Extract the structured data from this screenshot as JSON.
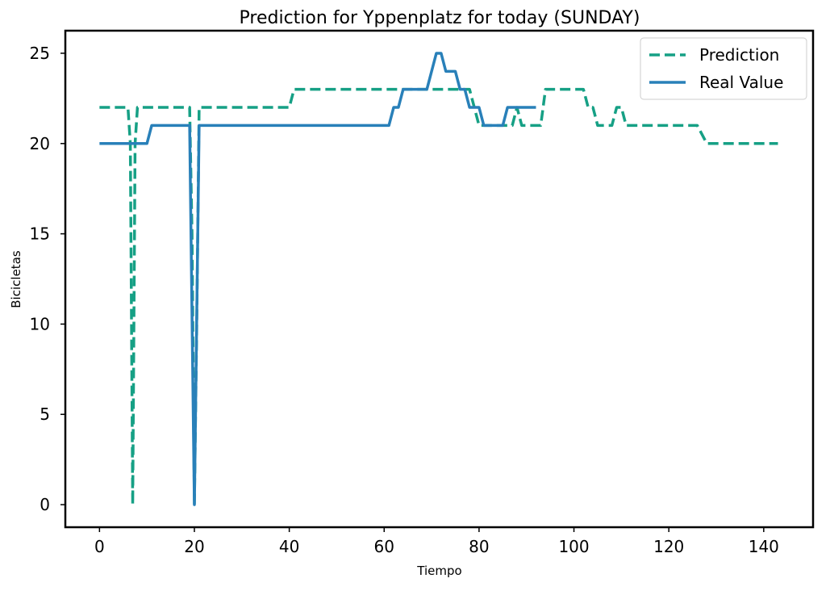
{
  "chart_data": {
    "type": "line",
    "title": "Prediction for Yppenplatz for today (SUNDAY)",
    "xlabel": "Tiempo",
    "ylabel": "Bicicletas",
    "xlim": [
      -7.2,
      150.4
    ],
    "ylim": [
      -1.25,
      26.25
    ],
    "xticks": [
      0,
      20,
      40,
      60,
      80,
      100,
      120,
      140
    ],
    "yticks": [
      0,
      5,
      10,
      15,
      20,
      25
    ],
    "grid": false,
    "legend_position": "top-right",
    "series": [
      {
        "name": "Prediction",
        "style": "dashed",
        "color": "#16a085",
        "points": [
          [
            0,
            22
          ],
          [
            6,
            22
          ],
          [
            6.5,
            20
          ],
          [
            7,
            0
          ],
          [
            7.5,
            20
          ],
          [
            8,
            22
          ],
          [
            19,
            22
          ],
          [
            19.5,
            15
          ],
          [
            20,
            0
          ],
          [
            20.5,
            10
          ],
          [
            21,
            22
          ],
          [
            40,
            22
          ],
          [
            41,
            23
          ],
          [
            78,
            23
          ],
          [
            80,
            21
          ],
          [
            87,
            21
          ],
          [
            88,
            22
          ],
          [
            89,
            21
          ],
          [
            93,
            21
          ],
          [
            94,
            23
          ],
          [
            102,
            23
          ],
          [
            103,
            22
          ],
          [
            104,
            22
          ],
          [
            105,
            21
          ],
          [
            108,
            21
          ],
          [
            109,
            22
          ],
          [
            110,
            22
          ],
          [
            111,
            21
          ],
          [
            126,
            21
          ],
          [
            128,
            20
          ],
          [
            143,
            20
          ]
        ]
      },
      {
        "name": "Real Value",
        "style": "solid",
        "color": "#2980b9",
        "points": [
          [
            0,
            20
          ],
          [
            10,
            20
          ],
          [
            11,
            21
          ],
          [
            19,
            21
          ],
          [
            20,
            0
          ],
          [
            21,
            21
          ],
          [
            61,
            21
          ],
          [
            62,
            22
          ],
          [
            63,
            22
          ],
          [
            64,
            23
          ],
          [
            69,
            23
          ],
          [
            71,
            25
          ],
          [
            72,
            25
          ],
          [
            73,
            24
          ],
          [
            75,
            24
          ],
          [
            76,
            23
          ],
          [
            77,
            23
          ],
          [
            78,
            22
          ],
          [
            80,
            22
          ],
          [
            81,
            21
          ],
          [
            85,
            21
          ],
          [
            86,
            22
          ],
          [
            92,
            22
          ]
        ]
      }
    ]
  }
}
